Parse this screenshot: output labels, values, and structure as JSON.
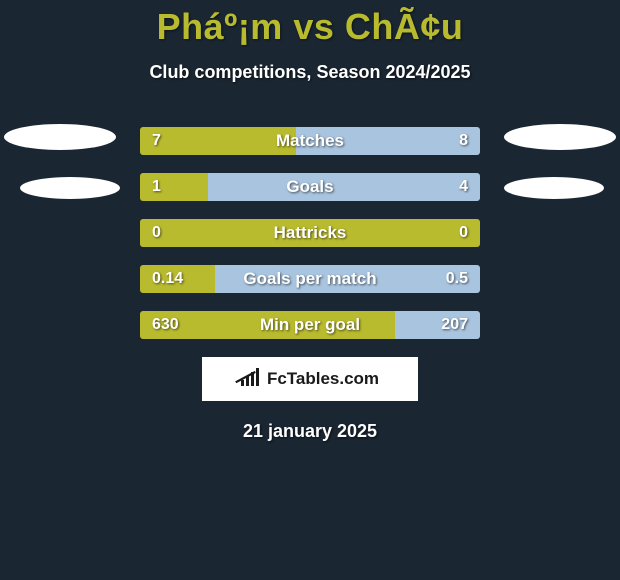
{
  "title": "Pháº¡m vs ChÃ¢u",
  "subtitle": "Club competitions, Season 2024/2025",
  "date": "21 january 2025",
  "brand": "FcTables.com",
  "colors": {
    "background": "#1a2632",
    "accent_left": "#b9bb2f",
    "accent_right": "#a9c4de",
    "title": "#b9bb2f",
    "text": "#ffffff",
    "brand_bg": "#ffffff",
    "brand_text": "#1a1a1a"
  },
  "bars": [
    {
      "label": "Matches",
      "left_text": "7",
      "right_text": "8",
      "left_pct": 46,
      "right_pct": 54
    },
    {
      "label": "Goals",
      "left_text": "1",
      "right_text": "4",
      "left_pct": 20,
      "right_pct": 80
    },
    {
      "label": "Hattricks",
      "left_text": "0",
      "right_text": "0",
      "left_pct": 100,
      "right_pct": 0
    },
    {
      "label": "Goals per match",
      "left_text": "0.14",
      "right_text": "0.5",
      "left_pct": 22,
      "right_pct": 78
    },
    {
      "label": "Min per goal",
      "left_text": "630",
      "right_text": "207",
      "left_pct": 75,
      "right_pct": 25
    }
  ]
}
